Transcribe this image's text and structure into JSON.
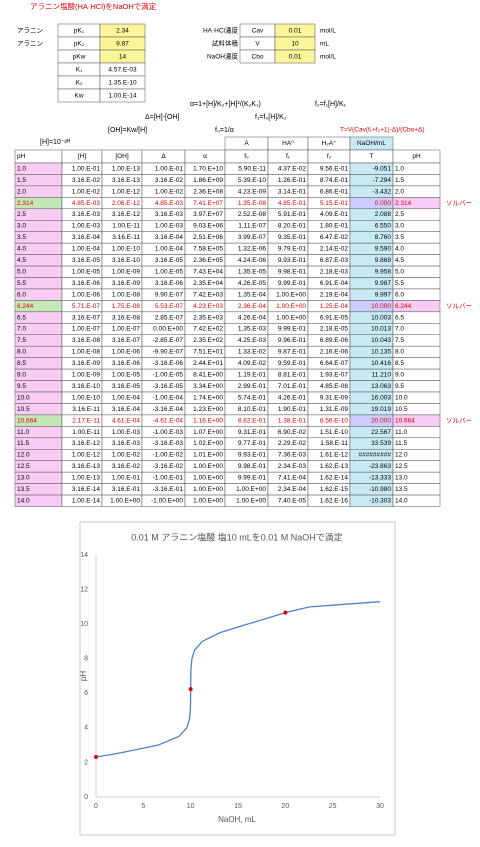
{
  "header": {
    "title": "アラニン塩酸(HA·HCl)をNaOHで滴定"
  },
  "params": [
    [
      "アラニン",
      "pK₁",
      "2.34",
      "HA·HCl濃度",
      "Cav",
      "0.01",
      "mol/L"
    ],
    [
      "アラニン",
      "pK₂",
      "9.87",
      "試料体積",
      "V",
      "10",
      "mL"
    ],
    [
      null,
      "pKw",
      "14",
      "NaOH濃度",
      "Cbo",
      "0.01",
      "mol/L"
    ],
    [
      null,
      "K₁",
      "4.57.E-03"
    ],
    [
      null,
      "K₂",
      "1.35.E-10"
    ],
    [
      null,
      "Kw",
      "1.00.E-14"
    ]
  ],
  "formulas": [
    "α=1+[H]/K₂+[H]²/(K₂K₁)",
    "f₂=f₁[H]/K₁",
    "Δ=[H]-[OH]",
    "f₁=f₀[H]/K₂",
    "[OH]=Kw/[H]",
    "f₀=1/α",
    "T=V(Cav(f₁+f₂+1)-Δ)/(Cbo+Δ)",
    "[H]=10⁻ᵖᴴ"
  ],
  "table": {
    "header1": [
      null,
      null,
      null,
      null,
      null,
      "A",
      "HA⁰",
      "H₂A⁺",
      "NaOH/mL",
      null
    ],
    "header2": [
      "pH",
      "[H]",
      "[OH]",
      "Δ",
      "α",
      "f₀",
      "f₁",
      "f₂",
      "T",
      "pH"
    ],
    "rows": [
      [
        "1.0",
        "1.00.E-01",
        "1.00.E-13",
        "1.00.E-01",
        "1.70.E+10",
        "5.90.E-11",
        "4.37.E-02",
        "9.56.E-01",
        "-9.051",
        "1.0"
      ],
      [
        "1.5",
        "3.16.E-02",
        "3.16.E-13",
        "3.16.E-02",
        "1.86.E+09",
        "5.39.E-10",
        "1.26.E-01",
        "8.74.E-01",
        "-7.294",
        "1.5"
      ],
      [
        "2.0",
        "1.00.E-02",
        "1.00.E-12",
        "1.00.E-02",
        "2.36.E+08",
        "4.23.E-09",
        "3.14.E-01",
        "6.86.E-01",
        "-3.432",
        "2.0"
      ],
      [
        "2.314",
        "4.85.E-03",
        "2.06.E-12",
        "4.85.E-03",
        "7.41.E+07",
        "1.35.E-08",
        "4.85.E-01",
        "5.15.E-01",
        "0.000",
        "2.314",
        "ソルバー"
      ],
      [
        "2.5",
        "3.16.E-03",
        "3.16.E-12",
        "3.16.E-03",
        "3.97.E+07",
        "2.52.E-08",
        "5.91.E-01",
        "4.09.E-01",
        "2.088",
        "2.5"
      ],
      [
        "3.0",
        "1.00.E-03",
        "1.00.E-11",
        "1.00.E-03",
        "9.03.E+06",
        "1.11.E-07",
        "8.20.E-01",
        "1.80.E-01",
        "6.550",
        "3.0"
      ],
      [
        "3.5",
        "3.16.E-04",
        "3.16.E-11",
        "3.16.E-04",
        "2.51.E+06",
        "3.99.E-07",
        "9.35.E-01",
        "6.47.E-02",
        "8.760",
        "3.5"
      ],
      [
        "4.0",
        "1.00.E-04",
        "1.00.E-10",
        "1.00.E-04",
        "7.58.E+05",
        "1.32.E-06",
        "9.79.E-01",
        "2.14.E-02",
        "9.590",
        "4.0"
      ],
      [
        "4.5",
        "3.16.E-05",
        "3.16.E-10",
        "3.16.E-05",
        "2.36.E+05",
        "4.24.E-06",
        "9.93.E-01",
        "6.87.E-03",
        "9.869",
        "4.5"
      ],
      [
        "5.0",
        "1.00.E-05",
        "1.00.E-09",
        "1.00.E-05",
        "7.43.E+04",
        "1.35.E-05",
        "9.98.E-01",
        "2.18.E-03",
        "9.958",
        "5.0"
      ],
      [
        "5.5",
        "3.16.E-06",
        "3.16.E-09",
        "3.16.E-06",
        "2.35.E+04",
        "4.26.E-05",
        "9.99.E-01",
        "6.91.E-04",
        "9.987",
        "5.5"
      ],
      [
        "6.0",
        "1.00.E-06",
        "1.00.E-08",
        "9.90.E-07",
        "7.42.E+03",
        "1.35.E-04",
        "1.00.E+00",
        "2.19.E-04",
        "9.997",
        "6.0"
      ],
      [
        "6.244",
        "5.71.E-07",
        "1.75.E-08",
        "5.53.E-07",
        "4.23.E+03",
        "2.36.E-04",
        "1.00.E+00",
        "1.25.E-04",
        "10.000",
        "6.244",
        "ソルバー"
      ],
      [
        "6.5",
        "3.16.E-07",
        "3.16.E-08",
        "2.85.E-07",
        "2.35.E+03",
        "4.26.E-04",
        "1.00.E+00",
        "6.91.E-05",
        "10.003",
        "6.5"
      ],
      [
        "7.0",
        "1.00.E-07",
        "1.00.E-07",
        "0.00.E+00",
        "7.42.E+02",
        "1.35.E-03",
        "9.99.E-01",
        "2.18.E-05",
        "10.013",
        "7.0"
      ],
      [
        "7.5",
        "3.16.E-08",
        "3.16.E-07",
        "-2.85.E-07",
        "2.35.E+02",
        "4.25.E-03",
        "9.96.E-01",
        "6.89.E-06",
        "10.043",
        "7.5"
      ],
      [
        "8.0",
        "1.00.E-08",
        "1.00.E-06",
        "-9.90.E-07",
        "7.51.E+01",
        "1.33.E-02",
        "9.87.E-01",
        "2.16.E-06",
        "10.135",
        "8.0"
      ],
      [
        "8.5",
        "3.16.E-09",
        "3.16.E-06",
        "-3.16.E-06",
        "2.44.E+01",
        "4.09.E-02",
        "9.59.E-01",
        "6.64.E-07",
        "10.416",
        "8.5"
      ],
      [
        "9.0",
        "1.00.E-09",
        "1.00.E-05",
        "-1.00.E-05",
        "8.41.E+00",
        "1.19.E-01",
        "8.81.E-01",
        "1.93.E-07",
        "11.210",
        "9.0"
      ],
      [
        "9.5",
        "3.16.E-10",
        "3.16.E-05",
        "-3.16.E-05",
        "3.34.E+00",
        "2.99.E-01",
        "7.01.E-01",
        "4.85.E-08",
        "13.063",
        "9.5"
      ],
      [
        "10.0",
        "1.00.E-10",
        "1.00.E-04",
        "-1.00.E-04",
        "1.74.E+00",
        "5.74.E-01",
        "4.26.E-01",
        "9.31.E-09",
        "16.003",
        "10.0"
      ],
      [
        "10.5",
        "3.16.E-11",
        "3.16.E-04",
        "-3.16.E-04",
        "1.23.E+00",
        "8.10.E-01",
        "1.90.E-01",
        "1.31.E-09",
        "19.019",
        "10.5"
      ],
      [
        "10.664",
        "2.17.E-11",
        "4.61.E-04",
        "-4.61.E-04",
        "1.16.E+00",
        "8.62.E-01",
        "1.38.E-01",
        "6.56.E-10",
        "20.000",
        "10.664",
        "ソルバー"
      ],
      [
        "11.0",
        "1.00.E-11",
        "1.00.E-03",
        "-1.00.E-03",
        "1.07.E+00",
        "9.31.E-01",
        "6.90.E-02",
        "1.51.E-10",
        "22.567",
        "11.0"
      ],
      [
        "11.5",
        "3.16.E-12",
        "3.16.E-03",
        "-3.16.E-03",
        "1.02.E+00",
        "9.77.E-01",
        "2.29.E-02",
        "1.58.E-11",
        "33.539",
        "11.5"
      ],
      [
        "12.0",
        "1.00.E-12",
        "1.00.E-02",
        "-1.00.E-02",
        "1.01.E+00",
        "9.93.E-01",
        "7.36.E-03",
        "1.61.E-12",
        "#########",
        "12.0"
      ],
      [
        "12.5",
        "3.16.E-13",
        "3.16.E-02",
        "-3.16.E-02",
        "1.00.E+00",
        "9.98.E-01",
        "2.34.E-03",
        "1.62.E-13",
        "-23.863",
        "12.5"
      ],
      [
        "13.0",
        "1.00.E-13",
        "1.00.E-01",
        "-1.00.E-01",
        "1.00.E+00",
        "9.99.E-01",
        "7.41.E-04",
        "1.62.E-14",
        "-13.333",
        "13.0"
      ],
      [
        "13.5",
        "3.16.E-14",
        "3.16.E-01",
        "-3.16.E-01",
        "1.00.E+00",
        "1.00.E+00",
        "2.34.E-04",
        "1.62.E-15",
        "-10.980",
        "13.5"
      ],
      [
        "14.0",
        "1.00.E-14",
        "1.00.E+00",
        "-1.00.E+00",
        "1.00.E+00",
        "1.00.E+00",
        "7.40.E-05",
        "1.62.E-16",
        "-10.303",
        "14.0"
      ]
    ]
  },
  "chart_data": {
    "type": "line",
    "title": "0.01 M アラニン塩酸 塩10 mLを0.01 M NaOHで滴定",
    "x_label": "NaOH, mL",
    "y_label": "pH",
    "xlim": [
      0,
      30
    ],
    "xticks": [
      0,
      5,
      10,
      15,
      20,
      25,
      30
    ],
    "ylim": [
      0,
      14
    ],
    "yticks": [
      0,
      2,
      4,
      6,
      8,
      10,
      12,
      14
    ],
    "grid": false,
    "series": [
      {
        "color": "#4f81c7",
        "x": [
          0,
          2.088,
          6.55,
          8.76,
          9.59,
          9.869,
          9.958,
          9.987,
          9.997,
          10,
          10.003,
          10.013,
          10.043,
          10.135,
          10.416,
          11.21,
          13.063,
          16.003,
          19.019,
          20,
          22.567,
          30
        ],
        "values": [
          2.314,
          2.5,
          3.0,
          3.5,
          4.0,
          4.5,
          5.0,
          5.5,
          6.0,
          6.244,
          6.5,
          7.0,
          7.5,
          8.0,
          8.5,
          9.0,
          9.5,
          10.0,
          10.5,
          10.664,
          11.0,
          11.3
        ]
      }
    ],
    "points": {
      "color": "#e00000",
      "x": [
        0,
        10,
        20
      ],
      "values": [
        2.314,
        6.244,
        10.664
      ]
    }
  }
}
